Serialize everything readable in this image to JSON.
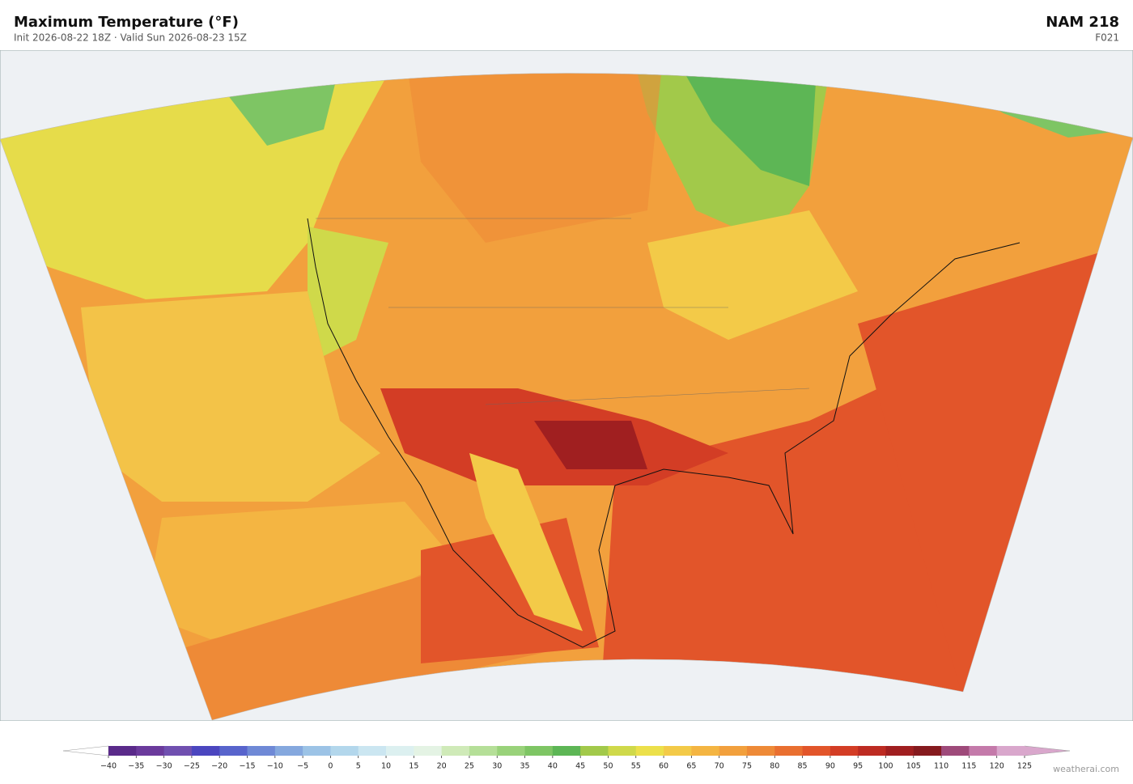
{
  "header": {
    "title": "Maximum Temperature  (°F)",
    "subtitle": "Init 2026-08-22 18Z  ·  Valid Sun 2026-08-23 15Z",
    "model": "NAM  218",
    "forecast_hour": "F021"
  },
  "colorbar": {
    "ticks": [
      {
        "value": -40,
        "label": "−40"
      },
      {
        "value": -35,
        "label": "−35"
      },
      {
        "value": -30,
        "label": "−30"
      },
      {
        "value": -25,
        "label": "−25"
      },
      {
        "value": -20,
        "label": "−20"
      },
      {
        "value": -15,
        "label": "−15"
      },
      {
        "value": -10,
        "label": "−10"
      },
      {
        "value": -5,
        "label": "−5"
      },
      0,
      5,
      10,
      15,
      20,
      25,
      30,
      35,
      40,
      45,
      50,
      55,
      60,
      65,
      70,
      75,
      80,
      85,
      90,
      95,
      100,
      105,
      110,
      115,
      120,
      125
    ],
    "colors": [
      "#5a2a8a",
      "#6b3a9c",
      "#7050b0",
      "#4b46bf",
      "#5864cc",
      "#6f89d6",
      "#85a8de",
      "#9cc3e6",
      "#b3d7ec",
      "#cbe6f1",
      "#dcf0f0",
      "#e4f3e4",
      "#cfeab8",
      "#b5df98",
      "#99d27a",
      "#7ec564",
      "#5db655",
      "#a2c94a",
      "#cfd94a",
      "#ece04a",
      "#f3ca48",
      "#f4b542",
      "#f2a03d",
      "#ee8a37",
      "#e96f30",
      "#e2552a",
      "#d33d25",
      "#bd2b22",
      "#a01f20",
      "#851a1e",
      "#9e4a7a",
      "#c47aaa",
      "#d9a7cc"
    ],
    "under_color": "#ffffff",
    "over_color": "#d9a7cc"
  },
  "footer": {
    "watermark": "weatherai.com"
  }
}
